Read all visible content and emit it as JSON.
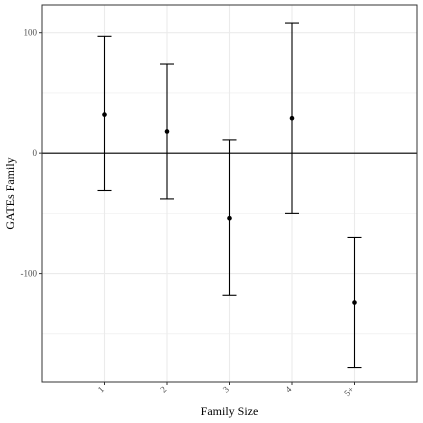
{
  "chart_data": {
    "type": "scatter",
    "subtype": "point-with-error-bars",
    "title": "",
    "xlabel": "Family Size",
    "ylabel": "GATEs Family",
    "categories": [
      "1",
      "2",
      "3",
      "4",
      "5+"
    ],
    "estimates": [
      32,
      18,
      -54,
      29,
      -124
    ],
    "lower": [
      -31,
      -38,
      -118,
      -50,
      -178
    ],
    "upper": [
      97,
      74,
      11,
      108,
      -70
    ],
    "yticks": [
      -100,
      0,
      100
    ],
    "ylim": [
      -190,
      123
    ],
    "reference_line": 0,
    "grid": true,
    "legend": "none",
    "colors": {
      "marks": "#000000",
      "grid": "#ebebeb",
      "panel_border": "#333333",
      "tick_label": "#4d4d4d"
    }
  }
}
